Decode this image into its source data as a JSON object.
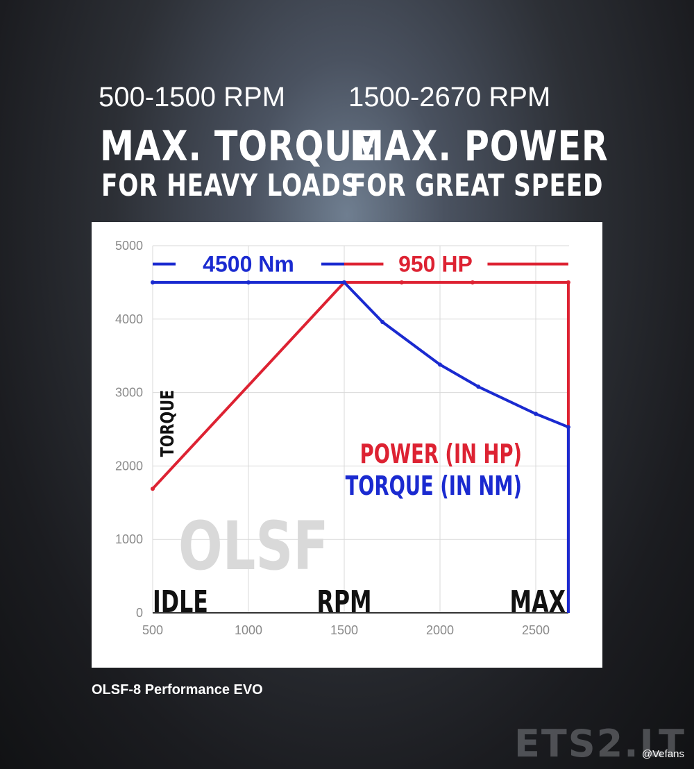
{
  "header": {
    "torque_rpm": "500-1500 RPM",
    "power_rpm": "1500-2670 RPM",
    "torque_title": "MAX. TORQUE",
    "power_title": "MAX. POWER",
    "torque_sub": "FOR HEAVY LOADS",
    "power_sub": "FOR GREAT SPEED"
  },
  "chart_data": {
    "type": "line",
    "x_range": [
      500,
      2670
    ],
    "ylim": [
      0,
      5000
    ],
    "x_ticks": [
      500,
      1000,
      1500,
      2000,
      2500
    ],
    "y_ticks": [
      0,
      1000,
      2000,
      3000,
      4000,
      5000
    ],
    "x_tick_labels": [
      "500",
      "1000",
      "1500",
      "2000",
      "2500"
    ],
    "y_tick_labels": [
      "0",
      "1000",
      "2000",
      "3000",
      "4000",
      "5000"
    ],
    "grid": true,
    "ylabel": "TORQUE",
    "x_annotations": {
      "left": "IDLE",
      "center": "RPM",
      "right": "MAX"
    },
    "watermark_text": "OLSF",
    "legend": {
      "placement": "right",
      "items": [
        "POWER (IN HP)",
        "TORQUE (IN NM)"
      ]
    },
    "series": [
      {
        "name": "POWER (IN HP)",
        "color": "#dd2232",
        "x": [
          500,
          1500,
          1800,
          2170,
          2670,
          2670
        ],
        "y": [
          1690,
          4500,
          4500,
          4500,
          4500,
          0
        ]
      },
      {
        "name": "TORQUE (IN NM)",
        "color": "#1a2ad0",
        "x": [
          500,
          1000,
          1500,
          1700,
          2000,
          2200,
          2500,
          2670,
          2670
        ],
        "y": [
          4500,
          4500,
          4500,
          3960,
          3380,
          3080,
          2710,
          2530,
          0
        ]
      }
    ],
    "annotations": [
      {
        "text": "4500 Nm",
        "color": "#1a2ad0",
        "x_from": 500,
        "x_to": 1500,
        "y": 4750
      },
      {
        "text": "950 HP",
        "color": "#dd2232",
        "x_from": 1500,
        "x_to": 2670,
        "y": 4750
      }
    ]
  },
  "caption": "OLSF-8 Performance EVO",
  "watermark": "ETS2.LT",
  "credit": "@Vefans"
}
